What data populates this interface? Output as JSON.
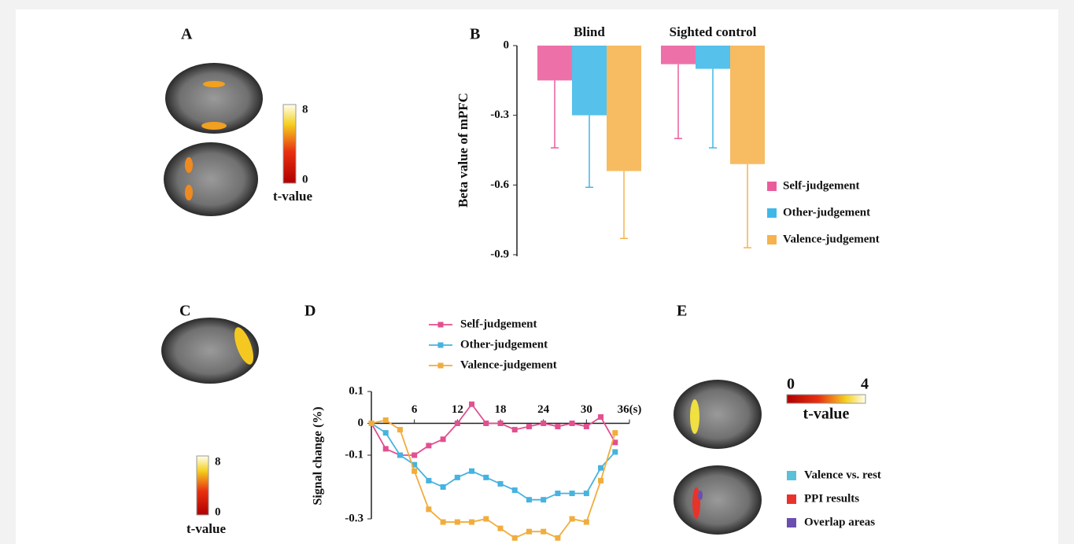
{
  "panels": [
    "A",
    "B",
    "C",
    "D",
    "E"
  ],
  "colorbars": [
    {
      "max": "8",
      "min": "0",
      "label": "t-value"
    },
    {
      "max": "8",
      "min": "0",
      "label": "t-value"
    },
    {
      "min": "0",
      "max": "4",
      "label": "t-value"
    }
  ],
  "overlay_legend": [
    {
      "name": "Valence vs.  rest",
      "color": "#5bc0d8"
    },
    {
      "name": "PPI  results",
      "color": "#e8332a"
    },
    {
      "name": "Overlap areas",
      "color": "#6a4fb0"
    }
  ],
  "chart_data": [
    {
      "type": "bar",
      "y_label": "Beta value of mPFC",
      "categories": [
        "Blind",
        "Sighted control"
      ],
      "series": [
        {
          "name": "Self-judgement",
          "color": "#ea5d9c",
          "values": [
            -0.15,
            -0.08
          ],
          "errors": [
            0.29,
            0.32
          ]
        },
        {
          "name": "Other-judgement",
          "color": "#3fb8e8",
          "values": [
            -0.3,
            -0.1
          ],
          "errors": [
            0.31,
            0.34
          ]
        },
        {
          "name": "Valence-judgement",
          "color": "#f6b24c",
          "values": [
            -0.54,
            -0.51
          ],
          "errors": [
            0.29,
            0.36
          ]
        }
      ],
      "ylim": [
        -0.9,
        0
      ],
      "yticks": [
        0,
        -0.3,
        -0.6,
        -0.9
      ]
    },
    {
      "type": "line",
      "y_label": "Signal  change (%)",
      "x": [
        0,
        2,
        4,
        6,
        8,
        10,
        12,
        14,
        16,
        18,
        20,
        22,
        24,
        26,
        28,
        30,
        32,
        34
      ],
      "series": [
        {
          "name": "Self-judgement",
          "color": "#e2508f",
          "values": [
            0,
            -0.08,
            -0.1,
            -0.1,
            -0.07,
            -0.05,
            0,
            0.06,
            0,
            0,
            -0.02,
            -0.01,
            0,
            -0.01,
            0,
            -0.01,
            0.02,
            -0.06
          ]
        },
        {
          "name": "Other-judgement",
          "color": "#46b3e0",
          "values": [
            0,
            -0.03,
            -0.1,
            -0.13,
            -0.18,
            -0.2,
            -0.17,
            -0.15,
            -0.17,
            -0.19,
            -0.21,
            -0.24,
            -0.24,
            -0.22,
            -0.22,
            -0.22,
            -0.14,
            -0.09
          ]
        },
        {
          "name": "Valence-judgement",
          "color": "#f1ad3c",
          "values": [
            0,
            0.01,
            -0.02,
            -0.15,
            -0.27,
            -0.31,
            -0.31,
            -0.31,
            -0.3,
            -0.33,
            -0.36,
            -0.34,
            -0.34,
            -0.36,
            -0.3,
            -0.31,
            -0.18,
            -0.03
          ]
        }
      ],
      "xlim": [
        0,
        36
      ],
      "xticks": [
        6,
        12,
        18,
        24,
        30,
        {
          "value": 36,
          "label": "36(s)"
        }
      ],
      "ylim": [
        -0.3,
        0.1
      ],
      "yticks": [
        0.1,
        0,
        -0.1,
        -0.3
      ]
    }
  ]
}
